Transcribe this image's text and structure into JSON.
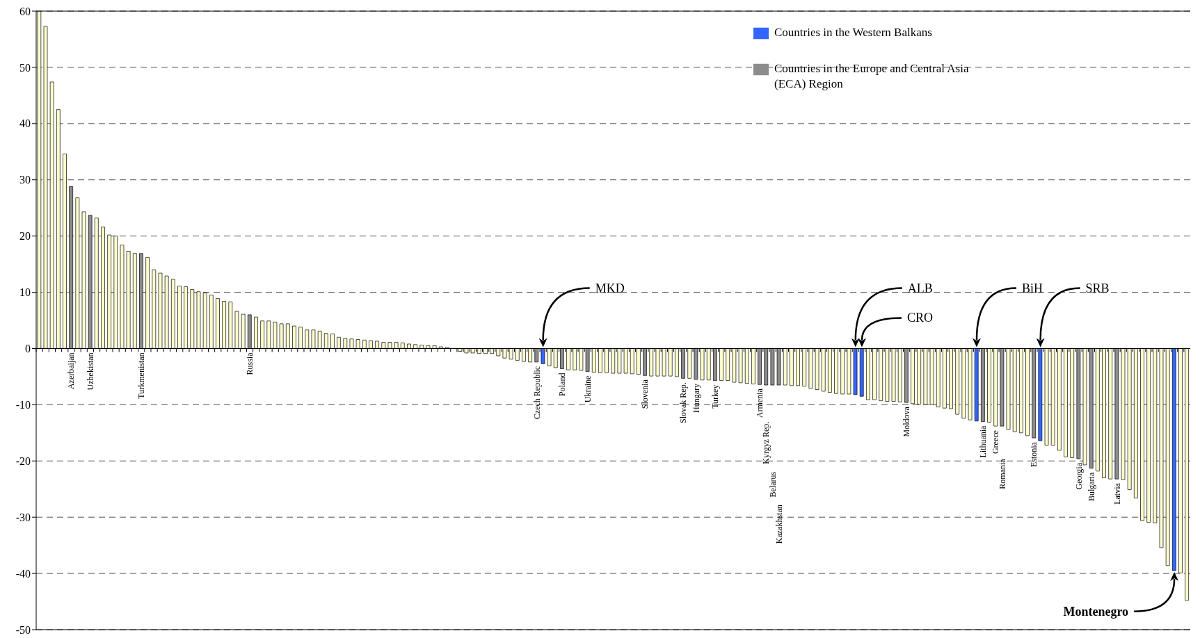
{
  "chart_data": {
    "type": "bar",
    "stacked": true,
    "categories": [
      null,
      null,
      null,
      null,
      null,
      "Azerbaijan",
      null,
      null,
      "Uzbekistan",
      null,
      null,
      null,
      null,
      null,
      null,
      null,
      "Turkmenistan",
      null,
      null,
      null,
      null,
      null,
      null,
      null,
      null,
      null,
      null,
      null,
      null,
      null,
      null,
      null,
      null,
      "Russia",
      null,
      null,
      null,
      null,
      null,
      null,
      null,
      null,
      null,
      null,
      null,
      null,
      null,
      null,
      null,
      null,
      null,
      null,
      null,
      null,
      null,
      null,
      null,
      null,
      null,
      null,
      null,
      null,
      null,
      null,
      null,
      null,
      null,
      null,
      null,
      null,
      null,
      null,
      null,
      null,
      null,
      null,
      null,
      null,
      "Czech Republic",
      null,
      null,
      null,
      "Poland",
      null,
      null,
      null,
      "Ukraine",
      null,
      null,
      null,
      null,
      null,
      null,
      null,
      null,
      "Slovenia",
      null,
      null,
      null,
      null,
      null,
      "Slovak Rep.",
      null,
      "Hungary",
      null,
      null,
      "Turkey",
      null,
      null,
      null,
      null,
      null,
      null,
      "Armenia",
      "Kyrgyz Rep.",
      "Belarus",
      "Kazakhstan",
      null,
      null,
      null,
      null,
      null,
      null,
      null,
      null,
      null,
      null,
      null,
      null,
      null,
      null,
      null,
      null,
      null,
      null,
      null,
      "Moldova",
      null,
      null,
      null,
      null,
      null,
      null,
      null,
      null,
      null,
      null,
      null,
      "Lithuania",
      null,
      "Greece",
      "Romania",
      null,
      null,
      null,
      null,
      "Estonia",
      null,
      null,
      null,
      null,
      null,
      null,
      "Georgia",
      null,
      "Bulgaria",
      null,
      null,
      null,
      "Latvia",
      null,
      null,
      null,
      null,
      null,
      null,
      null,
      null,
      null,
      null,
      null
    ],
    "series": [
      {
        "color": "#ffffcc",
        "values": [
          60,
          57.3,
          47.4,
          42.5,
          34.6,
          null,
          26.8,
          24.3,
          null,
          23.2,
          21.6,
          20.2,
          20.0,
          18.4,
          17.3,
          16.9,
          null,
          16.2,
          14.0,
          13.4,
          12.9,
          12.3,
          11.1,
          11.0,
          10.5,
          10.1,
          9.9,
          9.5,
          8.9,
          8.4,
          8.3,
          6.6,
          6.1,
          null,
          5.6,
          4.9,
          4.9,
          4.7,
          4.4,
          4.4,
          4.0,
          3.8,
          3.3,
          3.3,
          3.1,
          2.7,
          2.6,
          2.0,
          1.8,
          1.7,
          1.6,
          1.5,
          1.4,
          1.3,
          1.1,
          1.1,
          1.1,
          1.0,
          0.8,
          0.7,
          0.6,
          0.5,
          0.5,
          0.3,
          0.2,
          0,
          -0.5,
          -0.8,
          -0.8,
          -0.9,
          -0.9,
          -0.9,
          -1.3,
          -1.7,
          -1.9,
          -2.1,
          -2.3,
          -2.4,
          null,
          null,
          -3.1,
          -3.4,
          null,
          -3.8,
          -3.8,
          -3.9,
          null,
          -4.2,
          -4.3,
          -4.3,
          -4.4,
          -4.4,
          -4.4,
          -4.5,
          -4.6,
          null,
          -4.9,
          -4.9,
          -4.9,
          -4.9,
          -5.0,
          null,
          -5.3,
          null,
          -5.6,
          -5.6,
          null,
          -5.7,
          -5.7,
          -6.0,
          -6.1,
          -6.2,
          -6.3,
          null,
          null,
          null,
          null,
          -6.5,
          -6.6,
          -6.6,
          -6.7,
          -7.1,
          -7.3,
          -7.6,
          -7.8,
          -8.0,
          -8.1,
          -8.1,
          null,
          null,
          -9.1,
          -9.1,
          -9.3,
          -9.4,
          -9.4,
          -9.5,
          null,
          -9.8,
          -9.9,
          -10.0,
          -10.0,
          -10.4,
          -10.6,
          -10.7,
          -11.7,
          -12.4,
          -12.7,
          null,
          null,
          -13.1,
          -13.8,
          null,
          -14.4,
          -14.8,
          -15.0,
          -15.5,
          null,
          null,
          -17.2,
          -17.2,
          -18.1,
          -19.3,
          -19.4,
          null,
          -20.7,
          null,
          -21.8,
          -23.0,
          -23.2,
          null,
          -23.3,
          -25.1,
          -26.6,
          -30.6,
          -30.9,
          -31.0,
          -35.4,
          -38.6,
          null,
          -39.9,
          -44.8
        ]
      },
      {
        "name": "Countries in the Western Balkans",
        "color": "#3366ff",
        "values": [
          null,
          null,
          null,
          null,
          null,
          null,
          null,
          null,
          null,
          null,
          null,
          null,
          null,
          null,
          null,
          null,
          null,
          null,
          null,
          null,
          null,
          null,
          null,
          null,
          null,
          null,
          null,
          null,
          null,
          null,
          null,
          null,
          null,
          null,
          null,
          null,
          null,
          null,
          null,
          null,
          null,
          null,
          null,
          null,
          null,
          null,
          null,
          null,
          null,
          null,
          null,
          null,
          null,
          null,
          null,
          null,
          null,
          null,
          null,
          null,
          null,
          null,
          null,
          null,
          null,
          null,
          null,
          null,
          null,
          null,
          null,
          null,
          null,
          null,
          null,
          null,
          null,
          null,
          null,
          -2.7,
          null,
          null,
          null,
          null,
          null,
          null,
          null,
          null,
          null,
          null,
          null,
          null,
          null,
          null,
          null,
          null,
          null,
          null,
          null,
          null,
          null,
          null,
          null,
          null,
          null,
          null,
          null,
          null,
          null,
          null,
          null,
          null,
          null,
          null,
          null,
          null,
          null,
          null,
          null,
          null,
          null,
          null,
          null,
          null,
          null,
          null,
          null,
          null,
          -8.2,
          -8.5,
          null,
          null,
          null,
          null,
          null,
          null,
          null,
          null,
          null,
          null,
          null,
          null,
          null,
          null,
          null,
          null,
          null,
          -12.9,
          null,
          null,
          null,
          null,
          null,
          null,
          null,
          null,
          null,
          -16.4,
          null,
          null,
          null,
          null,
          null,
          null,
          null,
          null,
          null,
          null,
          null,
          null,
          null,
          null,
          null,
          null,
          null,
          null,
          null,
          null,
          -39.5,
          null,
          null
        ]
      },
      {
        "name": "Countries in the Europe and Central Asia (ECA) Region",
        "color": "#8c8c8c",
        "values": [
          null,
          null,
          null,
          null,
          null,
          28.8,
          null,
          null,
          23.7,
          null,
          null,
          null,
          null,
          null,
          null,
          null,
          16.9,
          null,
          null,
          null,
          null,
          null,
          null,
          null,
          null,
          null,
          null,
          null,
          null,
          null,
          null,
          null,
          null,
          6.0,
          null,
          null,
          null,
          null,
          null,
          null,
          null,
          null,
          null,
          null,
          null,
          null,
          null,
          null,
          null,
          null,
          null,
          null,
          null,
          null,
          null,
          null,
          null,
          null,
          null,
          null,
          null,
          null,
          null,
          null,
          null,
          null,
          null,
          null,
          null,
          null,
          null,
          null,
          null,
          null,
          null,
          null,
          null,
          null,
          -2.4,
          null,
          null,
          null,
          -3.6,
          null,
          null,
          null,
          -4.1,
          null,
          null,
          null,
          null,
          null,
          null,
          null,
          null,
          -4.8,
          null,
          null,
          null,
          null,
          null,
          -5.3,
          null,
          -5.5,
          null,
          null,
          -5.7,
          null,
          null,
          null,
          null,
          null,
          null,
          -6.4,
          -6.5,
          -6.5,
          -6.5,
          null,
          null,
          null,
          null,
          null,
          null,
          null,
          null,
          null,
          null,
          null,
          null,
          null,
          null,
          null,
          null,
          null,
          null,
          null,
          -9.6,
          null,
          null,
          null,
          null,
          null,
          null,
          null,
          null,
          null,
          null,
          null,
          -13.0,
          null,
          null,
          -13.8,
          null,
          null,
          null,
          null,
          -15.9,
          null,
          null,
          null,
          null,
          null,
          null,
          -19.6,
          null,
          -21.3,
          null,
          null,
          null,
          -23.2,
          null,
          null,
          null,
          null,
          null,
          null,
          null,
          null,
          null,
          null,
          null
        ]
      }
    ],
    "ylim": [
      -50,
      60
    ],
    "yticks": [
      -50,
      -40,
      -30,
      -20,
      -10,
      0,
      10,
      20,
      30,
      40,
      50,
      60
    ],
    "grid": "y",
    "legend": "top right",
    "annotations": [
      "MKD",
      "ALB",
      "CRO",
      "BiH",
      "SRB",
      "Montenegro"
    ]
  }
}
